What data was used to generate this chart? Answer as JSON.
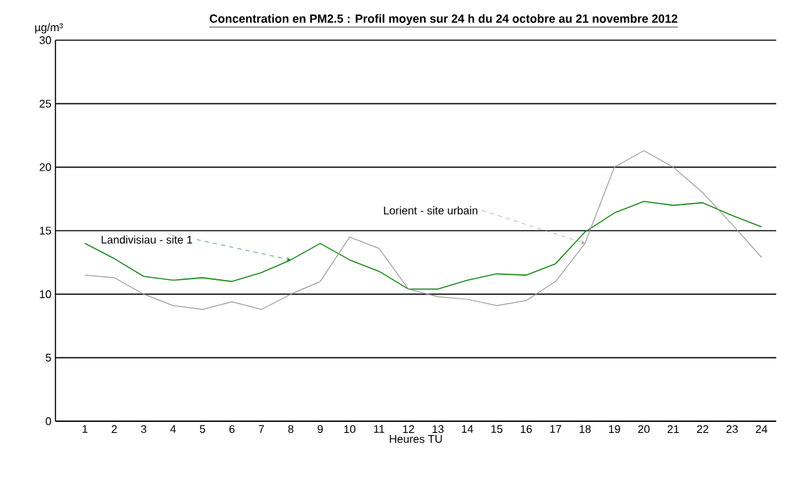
{
  "chart_data": {
    "type": "line",
    "title": "Concentration en PM2.5 : Profil moyen sur 24 h du 24 octobre au 21 novembre 2012",
    "xlabel": "Heures TU",
    "ylabel": "µg/m³",
    "categories": [
      "1",
      "2",
      "3",
      "4",
      "5",
      "6",
      "7",
      "8",
      "9",
      "10",
      "11",
      "12",
      "13",
      "14",
      "15",
      "16",
      "17",
      "18",
      "19",
      "20",
      "21",
      "22",
      "23",
      "24"
    ],
    "series": [
      {
        "name": "Landivisiau - site 1",
        "color": "#1a8a1a",
        "values": [
          14.0,
          12.8,
          11.4,
          11.1,
          11.3,
          11.0,
          11.7,
          12.7,
          14.0,
          12.7,
          11.8,
          10.4,
          10.4,
          11.1,
          11.6,
          11.5,
          12.4,
          14.9,
          16.4,
          17.3,
          17.0,
          17.2,
          16.2,
          15.3
        ]
      },
      {
        "name": "Lorient - site urbain",
        "color": "#999999",
        "values": [
          11.5,
          11.3,
          10.0,
          9.1,
          8.8,
          9.4,
          8.8,
          10.0,
          11.0,
          14.5,
          13.6,
          10.4,
          9.8,
          9.6,
          9.1,
          9.5,
          11.0,
          14.0,
          20.0,
          21.3,
          20.0,
          18.0,
          15.5,
          12.9
        ]
      }
    ],
    "ylim": [
      0,
      30
    ],
    "yticks": [
      0,
      5,
      10,
      15,
      20,
      25,
      30
    ],
    "grid": "y",
    "legend": false,
    "marker": "none",
    "line_style": "solid"
  }
}
